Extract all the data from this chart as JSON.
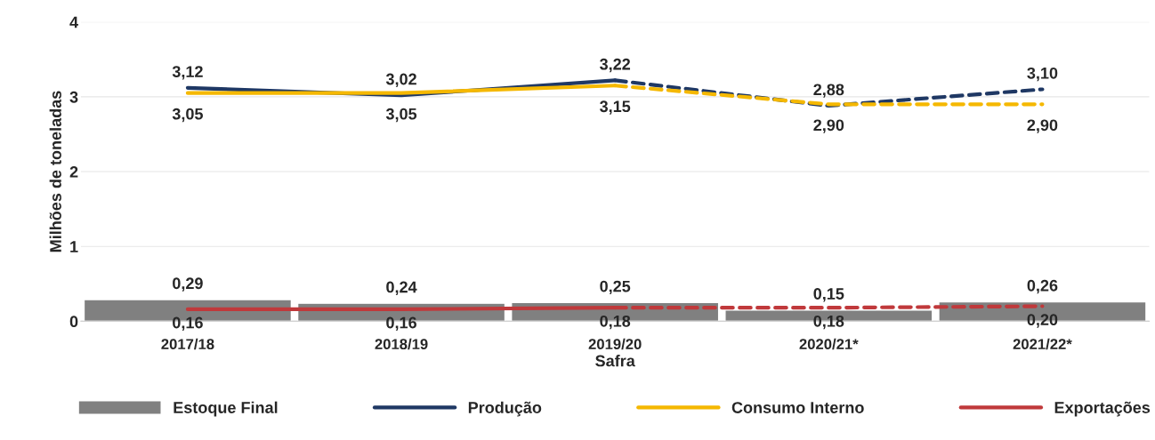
{
  "chart_data": {
    "type": "bar",
    "xlabel": "Safra",
    "ylabel": "Milhões de toneladas",
    "categories": [
      "2017/18",
      "2018/19",
      "2019/20",
      "2020/21*",
      "2021/22*"
    ],
    "series": [
      {
        "name": "Estoque Final",
        "color": "#808080",
        "values": [
          0.29,
          0.24,
          0.25,
          0.15,
          0.26
        ],
        "value_labels": [
          "0,29",
          "0,24",
          "0,25",
          "0,15",
          "0,26"
        ]
      },
      {
        "name": "Produção",
        "type": "line",
        "color": "#1f3864",
        "line_style": "solid",
        "values": [
          3.12,
          3.02,
          3.22,
          null,
          null
        ],
        "value_labels": [
          "3,12",
          "3,02",
          "3,22",
          null,
          null
        ]
      },
      {
        "type": "line",
        "color": "#1f3864",
        "line_style": "dashed",
        "values": [
          null,
          null,
          3.22,
          2.88,
          3.1
        ],
        "value_labels": [
          null,
          null,
          null,
          "2,88",
          "3,10"
        ]
      },
      {
        "name": "Consumo Interno",
        "type": "line",
        "color": "#f5b800",
        "line_style": "solid",
        "values": [
          3.05,
          3.05,
          3.15,
          null,
          null
        ],
        "value_labels": [
          "3,05",
          "3,05",
          "3,15",
          null,
          null
        ]
      },
      {
        "type": "line",
        "color": "#f5b800",
        "line_style": "dashed",
        "values": [
          null,
          null,
          3.15,
          2.9,
          2.9
        ],
        "value_labels": [
          null,
          null,
          null,
          "2,90",
          "2,90"
        ]
      },
      {
        "name": "Exportações",
        "type": "line",
        "color": "#c0393b",
        "line_style": "solid",
        "values": [
          0.16,
          0.16,
          0.18,
          null,
          null
        ],
        "value_labels": [
          "0,16",
          "0,16",
          "0,18",
          null,
          null
        ]
      },
      {
        "type": "line",
        "color": "#c0393b",
        "line_style": "dashed",
        "values": [
          null,
          null,
          0.18,
          0.18,
          0.2
        ],
        "value_labels": [
          null,
          null,
          null,
          "0,18",
          "0,20"
        ]
      }
    ],
    "ylim": [
      0,
      4
    ],
    "yticks": [
      0,
      1,
      2,
      3,
      4
    ],
    "grid": "y",
    "legend": "bottom",
    "marker": "none"
  }
}
